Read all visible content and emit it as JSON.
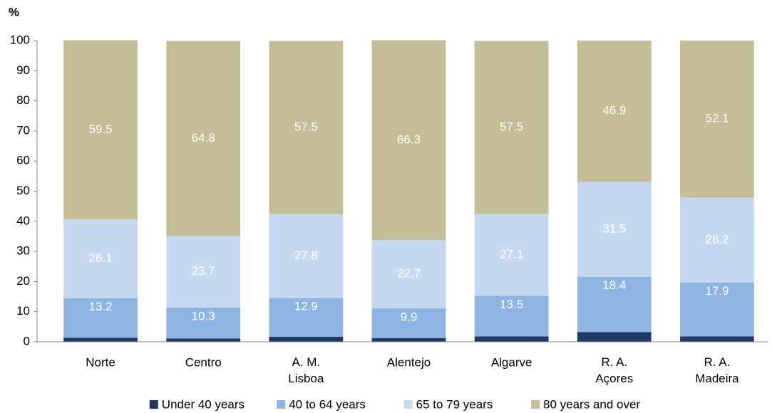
{
  "chart_data": {
    "type": "stacked_bar",
    "ylabel": "%",
    "categories": [
      "Norte",
      "Centro",
      "A. M.\nLisboa",
      "Alentejo",
      "Algarve",
      "R. A.\nAçores",
      "R. A.\nMadeira"
    ],
    "series": [
      {
        "name": "Under 40 years",
        "color": "#1f3864",
        "values": [
          1.3,
          1.1,
          1.7,
          1.2,
          1.8,
          3.2,
          1.8
        ]
      },
      {
        "name": "40 to 64 years",
        "color": "#8eb4e3",
        "values": [
          13.2,
          10.3,
          12.9,
          9.9,
          13.5,
          18.4,
          17.9
        ]
      },
      {
        "name": "65 to 79 years",
        "color": "#c5d9f1",
        "values": [
          26.1,
          23.7,
          27.8,
          22.7,
          27.1,
          31.5,
          28.2
        ]
      },
      {
        "name": "80 years and over",
        "color": "#c4bd97",
        "values": [
          59.5,
          64.8,
          57.5,
          66.3,
          57.5,
          46.9,
          52.1
        ]
      }
    ],
    "ylim": [
      0,
      100
    ],
    "yticks": [
      0,
      10,
      20,
      30,
      40,
      50,
      60,
      70,
      80,
      90,
      100
    ],
    "grid": false,
    "legend": "bottom"
  }
}
